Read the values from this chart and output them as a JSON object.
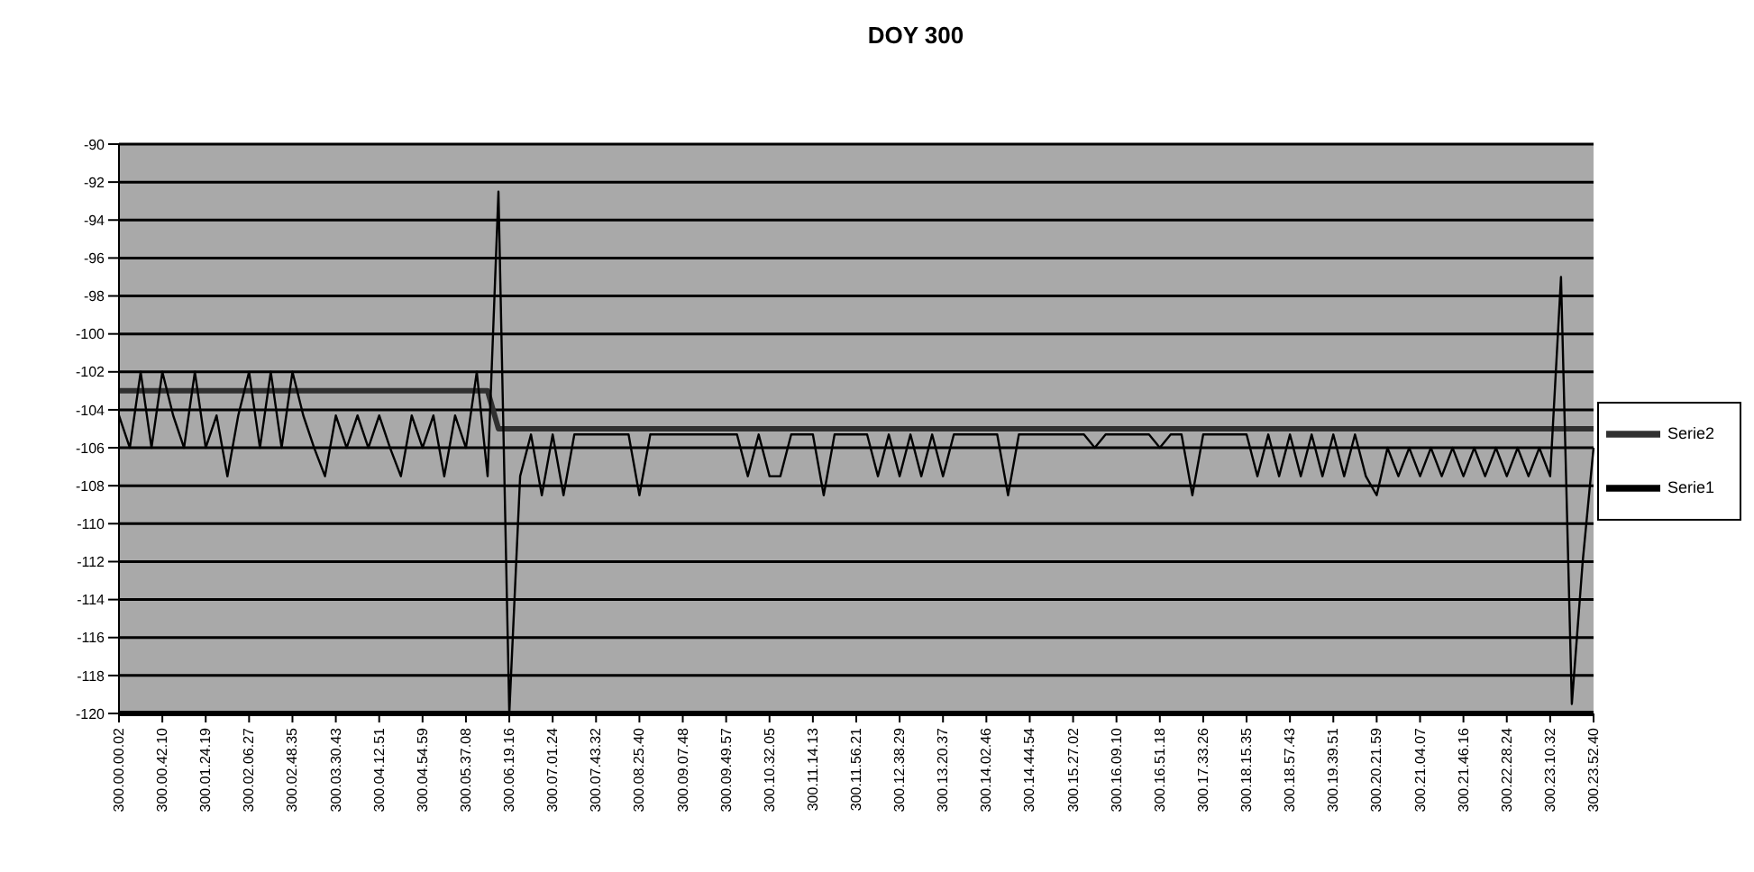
{
  "chart_data": {
    "type": "line",
    "title": "DOY 300",
    "categories": [
      "300.00.00.02",
      null,
      null,
      null,
      "300.00.42.10",
      null,
      null,
      null,
      "300.01.24.19",
      null,
      null,
      null,
      "300.02.06.27",
      null,
      null,
      null,
      "300.02.48.35",
      null,
      null,
      null,
      "300.03.30.43",
      null,
      null,
      null,
      "300.04.12.51",
      null,
      null,
      null,
      "300.04.54.59",
      null,
      null,
      null,
      "300.05.37.08",
      null,
      null,
      null,
      "300.06.19.16",
      null,
      null,
      null,
      "300.07.01.24",
      null,
      null,
      null,
      "300.07.43.32",
      null,
      null,
      null,
      "300.08.25.40",
      null,
      null,
      null,
      "300.09.07.48",
      null,
      null,
      null,
      "300.09.49.57",
      null,
      null,
      null,
      "300.10.32.05",
      null,
      null,
      null,
      "300.11.14.13",
      null,
      null,
      null,
      "300.11.56.21",
      null,
      null,
      null,
      "300.12.38.29",
      null,
      null,
      null,
      "300.13.20.37",
      null,
      null,
      null,
      "300.14.02.46",
      null,
      null,
      null,
      "300.14.44.54",
      null,
      null,
      null,
      "300.15.27.02",
      null,
      null,
      null,
      "300.16.09.10",
      null,
      null,
      null,
      "300.16.51.18",
      null,
      null,
      null,
      "300.17.33.26",
      null,
      null,
      null,
      "300.18.15.35",
      null,
      null,
      null,
      "300.18.57.43",
      null,
      null,
      null,
      "300.19.39.51",
      null,
      null,
      null,
      "300.20.21.59",
      null,
      null,
      null,
      "300.21.04.07",
      null,
      null,
      null,
      "300.21.46.16",
      null,
      null,
      null,
      "300.22.28.24",
      null,
      null,
      null,
      "300.23.10.32",
      null,
      null,
      null,
      "300.23.52.40"
    ],
    "series": [
      {
        "name": "Serie2",
        "color": "#303030",
        "values": [
          -103,
          -103,
          -103,
          -103,
          -103,
          -103,
          -103,
          -103,
          -103,
          -103,
          -103,
          -103,
          -103,
          -103,
          -103,
          -103,
          -103,
          -103,
          -103,
          -103,
          -103,
          -103,
          -103,
          -103,
          -103,
          -103,
          -103,
          -103,
          -103,
          -103,
          -103,
          -103,
          -103,
          -103,
          -103,
          -105,
          -105,
          -105,
          -105,
          -105,
          -105,
          -105,
          -105,
          -105,
          -105,
          -105,
          -105,
          -105,
          -105,
          -105,
          -105,
          -105,
          -105,
          -105,
          -105,
          -105,
          -105,
          -105,
          -105,
          -105,
          -105,
          -105,
          -105,
          -105,
          -105,
          -105,
          -105,
          -105,
          -105,
          -105,
          -105,
          -105,
          -105,
          -105,
          -105,
          -105,
          -105,
          -105,
          -105,
          -105,
          -105,
          -105,
          -105,
          -105,
          -105,
          -105,
          -105,
          -105,
          -105,
          -105,
          -105,
          -105,
          -105,
          -105,
          -105,
          -105,
          -105,
          -105,
          -105,
          -105,
          -105,
          -105,
          -105,
          -105,
          -105,
          -105,
          -105,
          -105,
          -105,
          -105,
          -105,
          -105,
          -105,
          -105,
          -105,
          -105,
          -105,
          -105,
          -105,
          -105,
          -105,
          -105,
          -105,
          -105,
          -105,
          -105,
          -105,
          -105,
          -105,
          -105,
          -105,
          -105,
          -105,
          -105,
          -105,
          -105,
          -105
        ]
      },
      {
        "name": "Serie1",
        "color": "#000000",
        "values": [
          -104.3,
          -106,
          -102,
          -106,
          -102,
          -104.3,
          -106,
          -102,
          -106,
          -104.3,
          -107.5,
          -104.3,
          -102,
          -106,
          -102,
          -106,
          -102,
          -104.3,
          -106,
          -107.5,
          -104.3,
          -106,
          -104.3,
          -106,
          -104.3,
          -106,
          -107.5,
          -104.3,
          -106,
          -104.3,
          -107.5,
          -104.3,
          -106,
          -102,
          -107.5,
          -92.5,
          -120,
          -107.5,
          -105.3,
          -108.5,
          -105.3,
          -108.5,
          -105.3,
          -105.3,
          -105.3,
          -105.3,
          -105.3,
          -105.3,
          -108.5,
          -105.3,
          -105.3,
          -105.3,
          -105.3,
          -105.3,
          -105.3,
          -105.3,
          -105.3,
          -105.3,
          -107.5,
          -105.3,
          -107.5,
          -107.5,
          -105.3,
          -105.3,
          -105.3,
          -108.5,
          -105.3,
          -105.3,
          -105.3,
          -105.3,
          -107.5,
          -105.3,
          -107.5,
          -105.3,
          -107.5,
          -105.3,
          -107.5,
          -105.3,
          -105.3,
          -105.3,
          -105.3,
          -105.3,
          -108.5,
          -105.3,
          -105.3,
          -105.3,
          -105.3,
          -105.3,
          -105.3,
          -105.3,
          -106,
          -105.3,
          -105.3,
          -105.3,
          -105.3,
          -105.3,
          -106,
          -105.3,
          -105.3,
          -108.5,
          -105.3,
          -105.3,
          -105.3,
          -105.3,
          -105.3,
          -107.5,
          -105.3,
          -107.5,
          -105.3,
          -107.5,
          -105.3,
          -107.5,
          -105.3,
          -107.5,
          -105.3,
          -107.5,
          -108.5,
          -106,
          -107.5,
          -106,
          -107.5,
          -106,
          -107.5,
          -106,
          -107.5,
          -106,
          -107.5,
          -106,
          -107.5,
          -106,
          -107.5,
          -106,
          -107.5,
          -97,
          -119.5,
          -112,
          -106
        ]
      }
    ],
    "ylim": [
      -120,
      -90
    ],
    "yticks": [
      -120,
      -118,
      -116,
      -114,
      -112,
      -110,
      -108,
      -106,
      -104,
      -102,
      -100,
      -98,
      -96,
      -94,
      -92,
      -90
    ],
    "grid": "y",
    "legend": "right",
    "marker": "none",
    "line_style": "solid"
  }
}
